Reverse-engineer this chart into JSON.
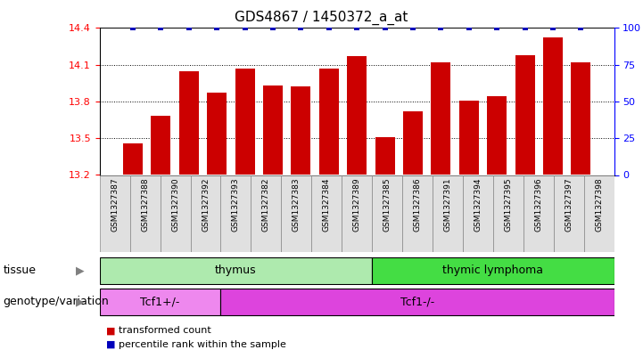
{
  "title": "GDS4867 / 1450372_a_at",
  "samples": [
    "GSM1327387",
    "GSM1327388",
    "GSM1327390",
    "GSM1327392",
    "GSM1327393",
    "GSM1327382",
    "GSM1327383",
    "GSM1327384",
    "GSM1327389",
    "GSM1327385",
    "GSM1327386",
    "GSM1327391",
    "GSM1327394",
    "GSM1327395",
    "GSM1327396",
    "GSM1327397",
    "GSM1327398"
  ],
  "red_values": [
    13.46,
    13.68,
    14.05,
    13.87,
    14.07,
    13.93,
    13.92,
    14.07,
    14.17,
    13.51,
    13.72,
    14.12,
    13.81,
    13.84,
    14.18,
    14.32,
    14.12
  ],
  "blue_values": [
    100,
    100,
    100,
    100,
    100,
    100,
    100,
    100,
    100,
    100,
    100,
    100,
    100,
    100,
    100,
    100,
    100
  ],
  "ylim_left": [
    13.2,
    14.4
  ],
  "ylim_right": [
    0,
    100
  ],
  "yticks_left": [
    13.2,
    13.5,
    13.8,
    14.1,
    14.4
  ],
  "yticks_right": [
    0,
    25,
    50,
    75,
    100
  ],
  "grid_vals": [
    13.5,
    13.8,
    14.1
  ],
  "tissue_groups": [
    {
      "label": "thymus",
      "start": 0,
      "end": 9,
      "color": "#AEEAAE"
    },
    {
      "label": "thymic lymphoma",
      "start": 9,
      "end": 17,
      "color": "#44DD44"
    }
  ],
  "genotype_groups": [
    {
      "label": "Tcf1+/-",
      "start": 0,
      "end": 4,
      "color": "#EE88EE"
    },
    {
      "label": "Tcf1-/-",
      "start": 4,
      "end": 17,
      "color": "#DD44DD"
    }
  ],
  "bar_color": "#CC0000",
  "dot_color": "#0000BB",
  "legend_items": [
    {
      "color": "#CC0000",
      "label": "transformed count"
    },
    {
      "color": "#0000BB",
      "label": "percentile rank within the sample"
    }
  ],
  "tissue_row_label": "tissue",
  "genotype_row_label": "genotype/variation",
  "sample_cell_color": "#E0E0E0",
  "sample_cell_edge": "#888888"
}
